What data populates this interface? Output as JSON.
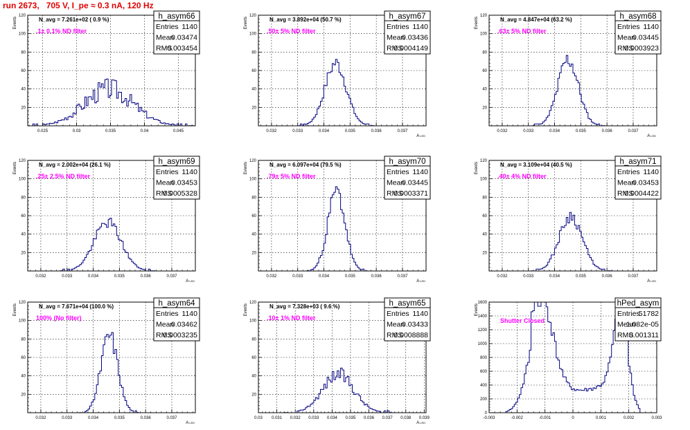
{
  "page_title": "run 2673,   705 V, I_pe ≈ 0.3 nA, 120 Hz",
  "stats_labels": {
    "entries": "Entries",
    "mean": "Mean",
    "rms": "RMS"
  },
  "chart_data": [
    {
      "type": "histogram",
      "name": "h_asym66",
      "navg": "N_avg = 7.261e+02 ( 0.9 %)",
      "annotation": ".1± 0.1% ND filter",
      "entries": "1140",
      "mean": "0.03474",
      "rms": "0.003454",
      "xlabel": "",
      "ylabel": "Events",
      "xlim": [
        0.0228,
        0.0475
      ],
      "ylim": [
        0,
        120
      ],
      "xticks": [
        0.025,
        0.03,
        0.035,
        0.04,
        0.045
      ],
      "xtick_labels": [
        "0.025",
        "0.03",
        "0.035",
        "0.04",
        "0.045"
      ],
      "yticks": [
        0,
        20,
        40,
        60,
        80,
        100,
        120
      ],
      "yticks_labeled": [
        20,
        40,
        60,
        80,
        100,
        120
      ],
      "shape": {
        "mu": 0.03474,
        "sigma": 0.0036,
        "peak": 40,
        "noise": 0.3,
        "seed": 3
      }
    },
    {
      "type": "histogram",
      "name": "h_asym67",
      "navg": "N_avg = 3.892e+04 (50.7 %)",
      "annotation": ".50± 5% ND filter",
      "entries": "1140",
      "mean": "0.03436",
      "rms": "0.0004149",
      "xlabel": "A_LED",
      "ylabel": "Events",
      "xlim": [
        0.0315,
        0.0379
      ],
      "ylim": [
        0,
        120
      ],
      "xticks": [
        0.032,
        0.033,
        0.034,
        0.035,
        0.036,
        0.037
      ],
      "xtick_labels": [
        "0.032",
        "0.033",
        "0.034",
        "0.035",
        "0.036",
        "0.037"
      ],
      "yticks": [
        0,
        20,
        40,
        60,
        80,
        100,
        120
      ],
      "yticks_labeled": [
        20,
        40,
        60,
        80,
        100,
        120
      ],
      "shape": {
        "mu": 0.03445,
        "sigma": 0.00041,
        "peak": 68,
        "noise": 0.12,
        "seed": 7
      }
    },
    {
      "type": "histogram",
      "name": "h_asym68",
      "navg": "N_avg = 4.847e+04 (63.2 %)",
      "annotation": ".63± 5% ND filter",
      "entries": "1140",
      "mean": "0.03445",
      "rms": "0.0003923",
      "xlabel": "A_LED",
      "ylabel": "Events",
      "xlim": [
        0.0315,
        0.0379
      ],
      "ylim": [
        0,
        120
      ],
      "xticks": [
        0.032,
        0.033,
        0.034,
        0.035,
        0.036,
        0.037
      ],
      "xtick_labels": [
        "0.032",
        "0.033",
        "0.034",
        "0.035",
        "0.036",
        "0.037"
      ],
      "yticks": [
        0,
        20,
        40,
        60,
        80,
        100,
        120
      ],
      "yticks_labeled": [
        20,
        40,
        60,
        80,
        100,
        120
      ],
      "shape": {
        "mu": 0.03452,
        "sigma": 0.00039,
        "peak": 72,
        "noise": 0.14,
        "seed": 11
      }
    },
    {
      "type": "histogram",
      "name": "h_asym69",
      "navg": "N_avg = 2.002e+04 (26.1 %)",
      "annotation": ".25± 2.5% ND filter",
      "entries": "1140",
      "mean": "0.03453",
      "rms": "0.0005328",
      "xlabel": "A_LED",
      "ylabel": "Events",
      "xlim": [
        0.0315,
        0.0379
      ],
      "ylim": [
        0,
        120
      ],
      "xticks": [
        0.032,
        0.033,
        0.034,
        0.035,
        0.036,
        0.037
      ],
      "xtick_labels": [
        "0.032",
        "0.033",
        "0.034",
        "0.035",
        "0.036",
        "0.037"
      ],
      "yticks": [
        0,
        20,
        40,
        60,
        80,
        100,
        120
      ],
      "yticks_labeled": [
        20,
        40,
        60,
        80,
        100,
        120
      ],
      "shape": {
        "mu": 0.03455,
        "sigma": 0.00052,
        "peak": 53,
        "noise": 0.12,
        "seed": 19
      }
    },
    {
      "type": "histogram",
      "name": "h_asym70",
      "navg": "N_avg = 6.097e+04 (79.5 %)",
      "annotation": ".79± 5% ND filter",
      "entries": "1140",
      "mean": "0.03445",
      "rms": "0.0003371",
      "xlabel": "A_LED",
      "ylabel": "Events",
      "xlim": [
        0.0315,
        0.0379
      ],
      "ylim": [
        0,
        120
      ],
      "xticks": [
        0.032,
        0.033,
        0.034,
        0.035,
        0.036,
        0.037
      ],
      "xtick_labels": [
        "0.032",
        "0.033",
        "0.034",
        "0.035",
        "0.036",
        "0.037"
      ],
      "yticks": [
        0,
        20,
        40,
        60,
        80,
        100,
        120
      ],
      "yticks_labeled": [
        20,
        40,
        60,
        80,
        100,
        120
      ],
      "shape": {
        "mu": 0.03448,
        "sigma": 0.00033,
        "peak": 86,
        "noise": 0.13,
        "seed": 23
      }
    },
    {
      "type": "histogram",
      "name": "h_asym71",
      "navg": "N_avg = 3.109e+04 (40.5 %)",
      "annotation": ".40± 4% ND filter",
      "entries": "1140",
      "mean": "0.03453",
      "rms": "0.0004422",
      "xlabel": "A_LED",
      "ylabel": "Events",
      "xlim": [
        0.0315,
        0.0379
      ],
      "ylim": [
        0,
        120
      ],
      "xticks": [
        0.032,
        0.033,
        0.034,
        0.035,
        0.036,
        0.037
      ],
      "xtick_labels": [
        "0.032",
        "0.033",
        "0.034",
        "0.035",
        "0.036",
        "0.037"
      ],
      "yticks": [
        0,
        20,
        40,
        60,
        80,
        100,
        120
      ],
      "yticks_labeled": [
        20,
        40,
        60,
        80,
        100,
        120
      ],
      "shape": {
        "mu": 0.03462,
        "sigma": 0.00044,
        "peak": 60,
        "noise": 0.12,
        "seed": 29
      }
    },
    {
      "type": "histogram",
      "name": "h_asym64",
      "navg": "N_avg = 7.671e+04 (100.0 %)",
      "annotation": "100% (No filter)",
      "entries": "1140",
      "mean": "0.03462",
      "rms": "0.0003235",
      "xlabel": "A_LED",
      "ylabel": "Events",
      "xlim": [
        0.0315,
        0.0379
      ],
      "ylim": [
        0,
        120
      ],
      "xticks": [
        0.032,
        0.033,
        0.034,
        0.035,
        0.036,
        0.037
      ],
      "xtick_labels": [
        "0.032",
        "0.033",
        "0.034",
        "0.035",
        "0.036",
        "0.037"
      ],
      "yticks": [
        0,
        20,
        40,
        60,
        80,
        100,
        120
      ],
      "yticks_labeled": [
        20,
        40,
        60,
        80,
        100,
        120
      ],
      "shape": {
        "mu": 0.03462,
        "sigma": 0.00032,
        "peak": 84,
        "noise": 0.13,
        "seed": 31
      }
    },
    {
      "type": "histogram",
      "name": "h_asym65",
      "navg": "N_avg = 7.328e+03 ( 9.6 %)",
      "annotation": ".10± 1% ND filter",
      "entries": "1140",
      "mean": "0.03433",
      "rms": "0.0008888",
      "xlabel": "A_LED",
      "ylabel": "Events",
      "xlim": [
        0.03,
        0.0391
      ],
      "ylim": [
        0,
        120
      ],
      "xticks": [
        0.03,
        0.031,
        0.032,
        0.033,
        0.034,
        0.035,
        0.036,
        0.037,
        0.038,
        0.039
      ],
      "xtick_labels": [
        "0.03",
        "0.031",
        "0.032",
        "0.033",
        "0.034",
        "0.035",
        "0.036",
        "0.037",
        "0.038",
        "0.039"
      ],
      "yticks": [
        0,
        20,
        40,
        60,
        80,
        100,
        120
      ],
      "yticks_labeled": [
        20,
        40,
        60,
        80,
        100,
        120
      ],
      "shape": {
        "mu": 0.03433,
        "sigma": 0.00085,
        "peak": 42,
        "noise": 0.18,
        "seed": 37
      }
    },
    {
      "type": "histogram",
      "name": "hPed_asym",
      "navg": "",
      "annotation": "Shutter Closed",
      "entries": "51782",
      "mean": "1.082e-05",
      "rms": "0.001311",
      "xlabel": "",
      "ylabel": "Events",
      "xlim": [
        -0.003,
        0.003
      ],
      "ylim": [
        0,
        1600
      ],
      "xticks": [
        -0.003,
        -0.002,
        -0.001,
        0,
        0.001,
        0.002,
        0.003
      ],
      "xtick_labels": [
        "-0.003",
        "-0.002",
        "-0.001",
        "0",
        "0.001",
        "0.002",
        "0.003"
      ],
      "yticks": [
        0,
        200,
        400,
        600,
        800,
        1000,
        1200,
        1400,
        1600
      ],
      "yticks_labeled": [
        0,
        200,
        400,
        600,
        800,
        1000,
        1200,
        1400,
        1600
      ],
      "shape": {
        "bimodal": true,
        "seed": 41
      }
    }
  ]
}
